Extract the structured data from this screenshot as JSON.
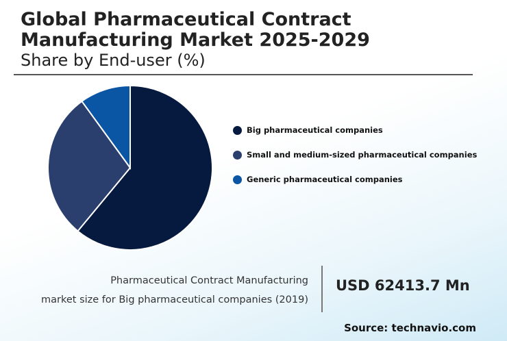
{
  "header": {
    "title": "Global Pharmaceutical Contract Manufacturing Market 2025-2029",
    "subtitle": "Share by End-user (%)"
  },
  "chart_data": {
    "type": "pie",
    "title": "Global Pharmaceutical Contract Manufacturing Market 2025-2029",
    "subtitle": "Share by End-user (%)",
    "categories": [
      "Big pharmaceutical companies",
      "Small and medium-sized pharmaceutical companies",
      "Generic pharmaceutical companies"
    ],
    "values": [
      61,
      29,
      10
    ],
    "colors": [
      "#061a40",
      "#2a3f6e",
      "#0a55a4"
    ],
    "legend_position": "right"
  },
  "footer": {
    "description_line1": "Pharmaceutical Contract Manufacturing",
    "description_line2": "market size for Big pharmaceutical companies (2019)",
    "value": "USD 62413.7 Mn",
    "source": "Source: technavio.com"
  }
}
